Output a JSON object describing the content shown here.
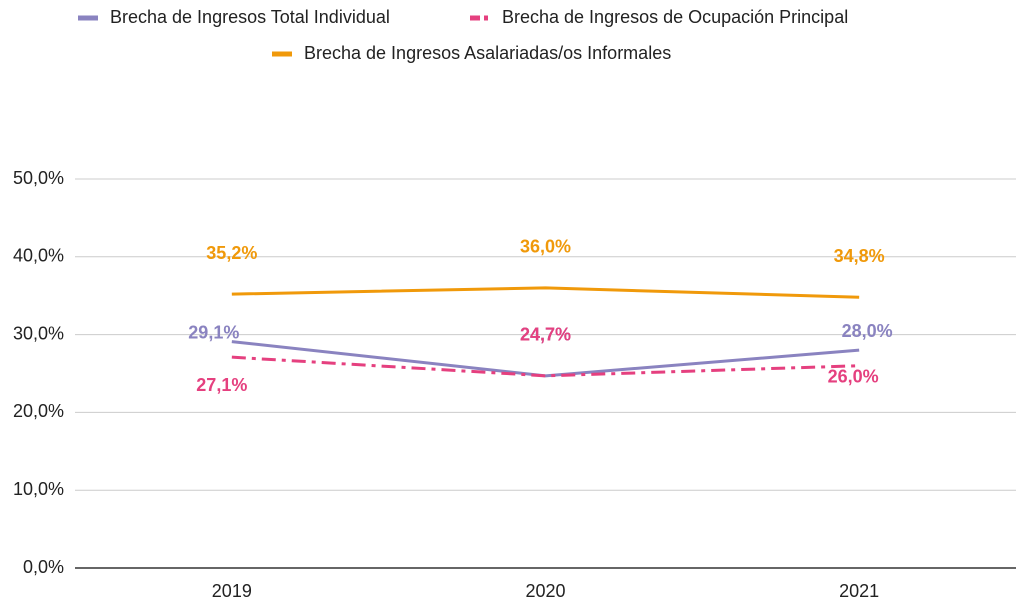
{
  "chart_data": {
    "type": "line",
    "categories": [
      "2019",
      "2020",
      "2021"
    ],
    "series": [
      {
        "name": "Brecha de Ingresos Total Individual",
        "color": "#8a83c0",
        "values": [
          29.1,
          24.7,
          28.0
        ],
        "value_labels": [
          "29,1%",
          "24,7%",
          "28,0%"
        ]
      },
      {
        "name": "Brecha de Ingresos de Ocupación Principal",
        "color": "#e5407f",
        "style": "dash-dot",
        "values": [
          27.1,
          24.7,
          26.0
        ],
        "value_labels": [
          "27,1%",
          "24,7%",
          "26,0%"
        ]
      },
      {
        "name": "Brecha de Ingresos Asalariadas/os Informales",
        "color": "#f0990a",
        "values": [
          35.2,
          36.0,
          34.8
        ],
        "value_labels": [
          "35,2%",
          "36,0%",
          "34,8%"
        ]
      }
    ],
    "ylim": [
      0,
      50
    ],
    "yticks": [
      {
        "value": 0,
        "label": "0,0%"
      },
      {
        "value": 10,
        "label": "10,0%"
      },
      {
        "value": 20,
        "label": "20,0%"
      },
      {
        "value": 30,
        "label": "30,0%"
      },
      {
        "value": 40,
        "label": "40,0%"
      },
      {
        "value": 50,
        "label": "50,0%"
      }
    ],
    "grid": true,
    "legend": "top"
  }
}
